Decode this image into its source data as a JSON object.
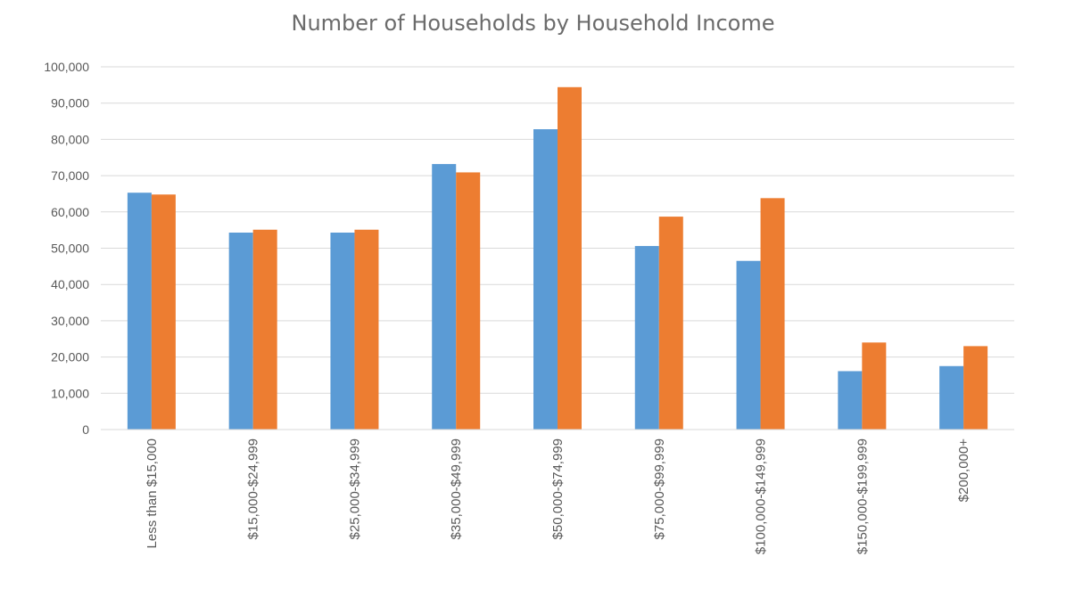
{
  "chart_data": {
    "type": "bar",
    "title": "Number of Households by Household Income",
    "xlabel": "",
    "ylabel": "",
    "categories": [
      "Less than $15,000",
      "$15,000-$24,999",
      "$25,000-$34,999",
      "$35,000-$49,999",
      "$50,000-$74,999",
      "$75,000-$99,999",
      "$100,000-$149,999",
      "$150,000-$199,999",
      "$200,000+"
    ],
    "series": [
      {
        "color": "#5b9bd5",
        "values": [
          65300,
          54300,
          54300,
          73200,
          82800,
          50600,
          46500,
          16100,
          17500
        ]
      },
      {
        "color": "#ed7d31",
        "values": [
          64800,
          55100,
          55100,
          70900,
          94400,
          58700,
          63800,
          24000,
          23000
        ]
      }
    ],
    "ylim": [
      0,
      100000
    ],
    "yticks": [
      "0",
      "10,000",
      "20,000",
      "30,000",
      "40,000",
      "50,000",
      "60,000",
      "70,000",
      "80,000",
      "90,000",
      "100,000"
    ],
    "grid": true,
    "legend": "none"
  }
}
